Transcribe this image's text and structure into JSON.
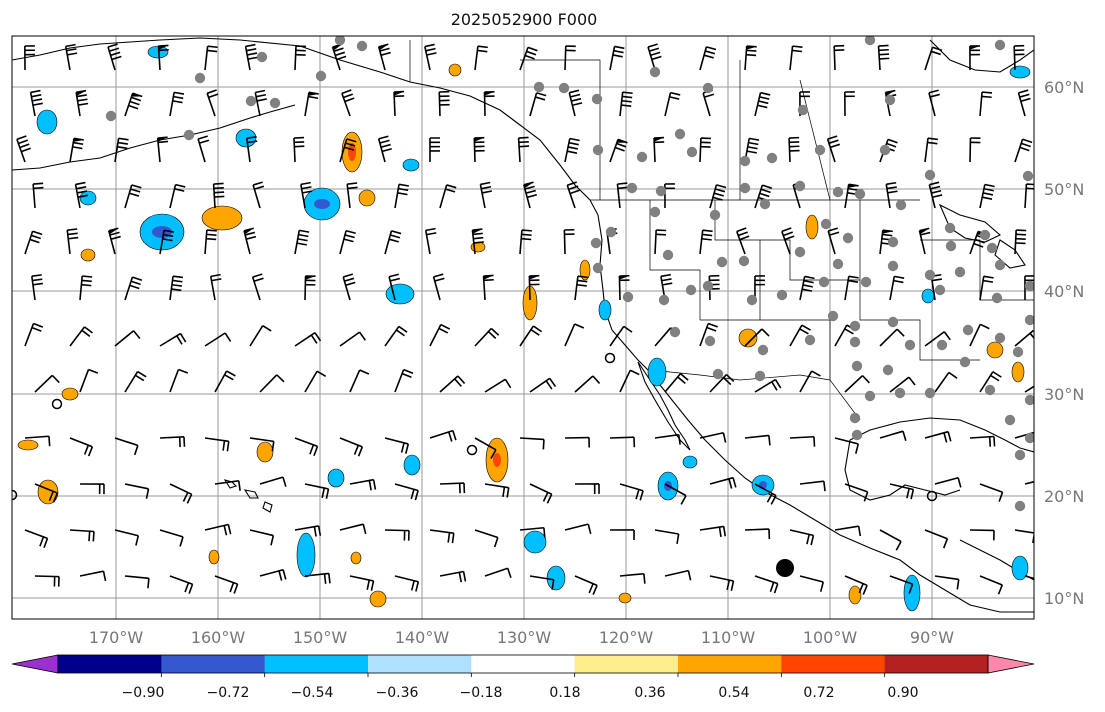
{
  "title": "2025052900 F000",
  "axes": {
    "lat_labels": [
      "60°N",
      "50°N",
      "40°N",
      "30°N",
      "20°N",
      "10°N"
    ],
    "lon_labels": [
      "170°W",
      "160°W",
      "150°W",
      "140°W",
      "130°W",
      "120°W",
      "110°W",
      "100°W",
      "90°W"
    ]
  },
  "colorbar": {
    "colors": [
      "#9b30d0",
      "#00008b",
      "#3458d0",
      "#00bfff",
      "#b0e0ff",
      "#ffffff",
      "#ffec8b",
      "#ffa500",
      "#ff4500",
      "#b22222",
      "#ff88aa"
    ],
    "tick_labels": [
      "−0.90",
      "−0.72",
      "−0.54",
      "−0.36",
      "−0.18",
      "0.18",
      "0.36",
      "0.54",
      "0.72",
      "0.90"
    ]
  },
  "colors": {
    "grid": "#999999",
    "coast": "#000000",
    "barb": "#000000",
    "station": "#808080"
  }
}
